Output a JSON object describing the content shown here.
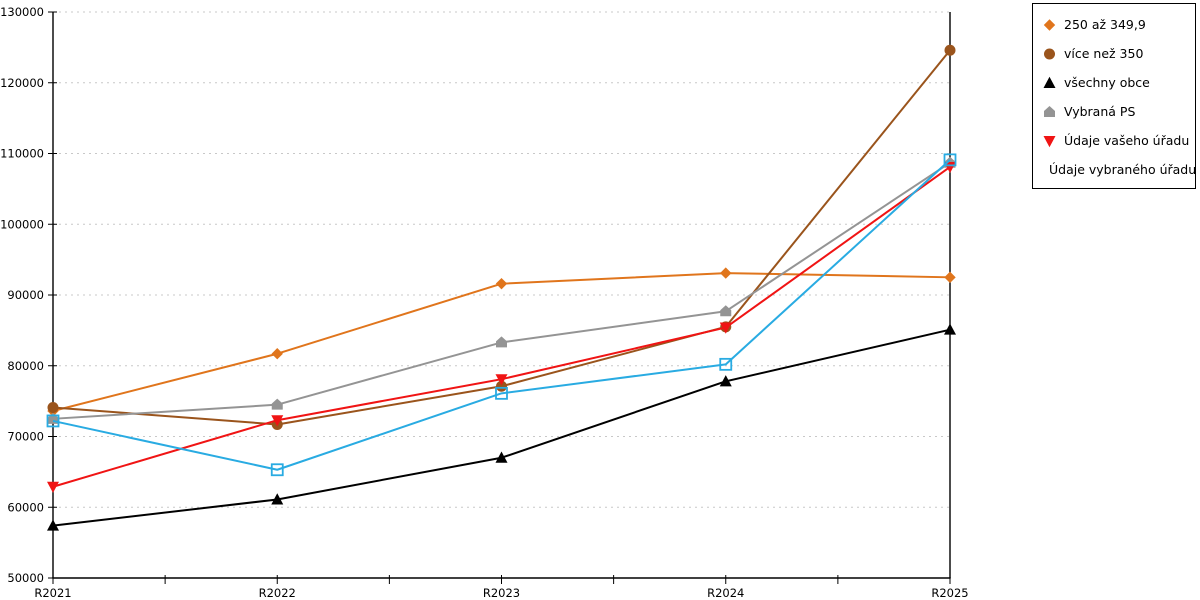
{
  "chart_data": {
    "type": "line",
    "categories": [
      "R2021",
      "R2022",
      "R2023",
      "R2024",
      "R2025"
    ],
    "series": [
      {
        "name": "250 až 349,9",
        "marker": "diamond",
        "color": "#E0751C",
        "values": [
          73600,
          81700,
          91600,
          93100,
          92500
        ]
      },
      {
        "name": "více než 350",
        "marker": "circle",
        "color": "#9A541C",
        "values": [
          74100,
          71700,
          77100,
          85500,
          124600
        ]
      },
      {
        "name": "všechny obce",
        "marker": "triangle-up",
        "color": "#000000",
        "values": [
          57400,
          61100,
          67000,
          77800,
          85100
        ]
      },
      {
        "name": "Vybraná PS",
        "marker": "pentagon",
        "color": "#949494",
        "values": [
          72500,
          74500,
          83300,
          87700,
          108700
        ]
      },
      {
        "name": "Údaje vašeho úřadu",
        "marker": "triangle-down",
        "color": "#F01414",
        "values": [
          62900,
          72300,
          78100,
          85400,
          108100
        ]
      },
      {
        "name": "Údaje vybraného úřadu",
        "marker": "square-open",
        "color": "#29ABE2",
        "values": [
          72200,
          65300,
          76100,
          80200,
          109100
        ]
      }
    ],
    "ylim": [
      50000,
      130000
    ],
    "ytick_step": 10000,
    "yticks": [
      "50000",
      "60000",
      "70000",
      "80000",
      "90000",
      "100000",
      "110000",
      "120000",
      "130000"
    ],
    "xlabel": "",
    "ylabel": "",
    "title": "",
    "grid": "horizontal-dashed",
    "minor_ticks_between_categories": true,
    "legend_position": "top-right",
    "colors": {
      "grid": "#C8C8C8",
      "axis": "#000000",
      "legend_border": "#000000",
      "background": "#FFFFFF"
    }
  }
}
